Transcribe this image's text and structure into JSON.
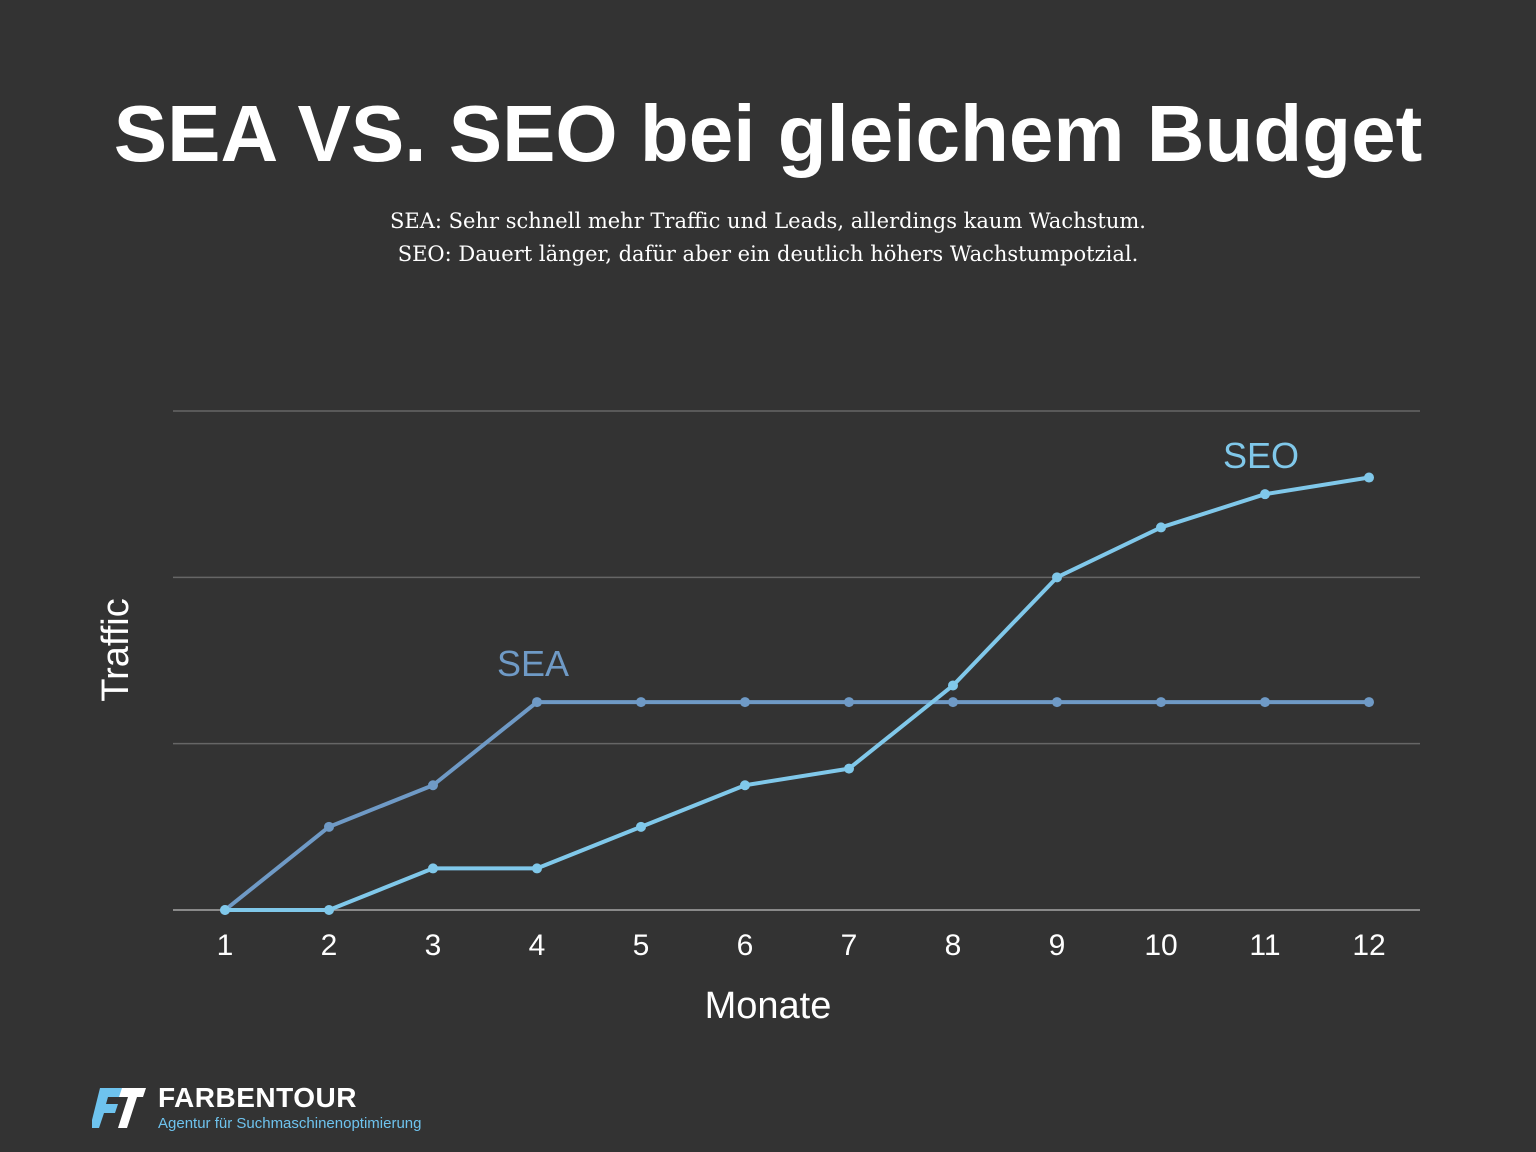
{
  "header": {
    "title": "SEA VS. SEO bei gleichem Budget",
    "subtitle_line1": "SEA: Sehr schnell mehr Traffic und Leads, allerdings kaum Wachstum.",
    "subtitle_line2": "SEO: Dauert länger, dafür aber ein deutlich höhers Wachstumpotzial."
  },
  "chart_data": {
    "type": "line",
    "title": "SEA VS. SEO bei gleichem Budget",
    "xlabel": "Monate",
    "ylabel": "Traffic",
    "categories": [
      "1",
      "2",
      "3",
      "4",
      "5",
      "6",
      "7",
      "8",
      "9",
      "10",
      "11",
      "12"
    ],
    "ylim": [
      0,
      3
    ],
    "gridlines": [
      0,
      1,
      2,
      3
    ],
    "series": [
      {
        "name": "SEA",
        "color": "#6f9ac6",
        "values": [
          0,
          0.5,
          0.75,
          1.25,
          1.25,
          1.25,
          1.25,
          1.25,
          1.25,
          1.25,
          1.25,
          1.25
        ]
      },
      {
        "name": "SEO",
        "color": "#80c8ea",
        "values": [
          0,
          0,
          0.25,
          0.25,
          0.5,
          0.75,
          0.85,
          1.35,
          2.0,
          2.3,
          2.5,
          2.6
        ]
      }
    ],
    "annotations": [
      {
        "text": "SEA",
        "series": "SEA",
        "at_category": "4"
      },
      {
        "text": "SEO",
        "series": "SEO",
        "at_category": "11"
      }
    ]
  },
  "footer": {
    "brand_name": "FARBENTOUR",
    "brand_tagline": "Agentur für Suchmaschinenoptimierung",
    "brand_color": "#6ec3ee"
  }
}
